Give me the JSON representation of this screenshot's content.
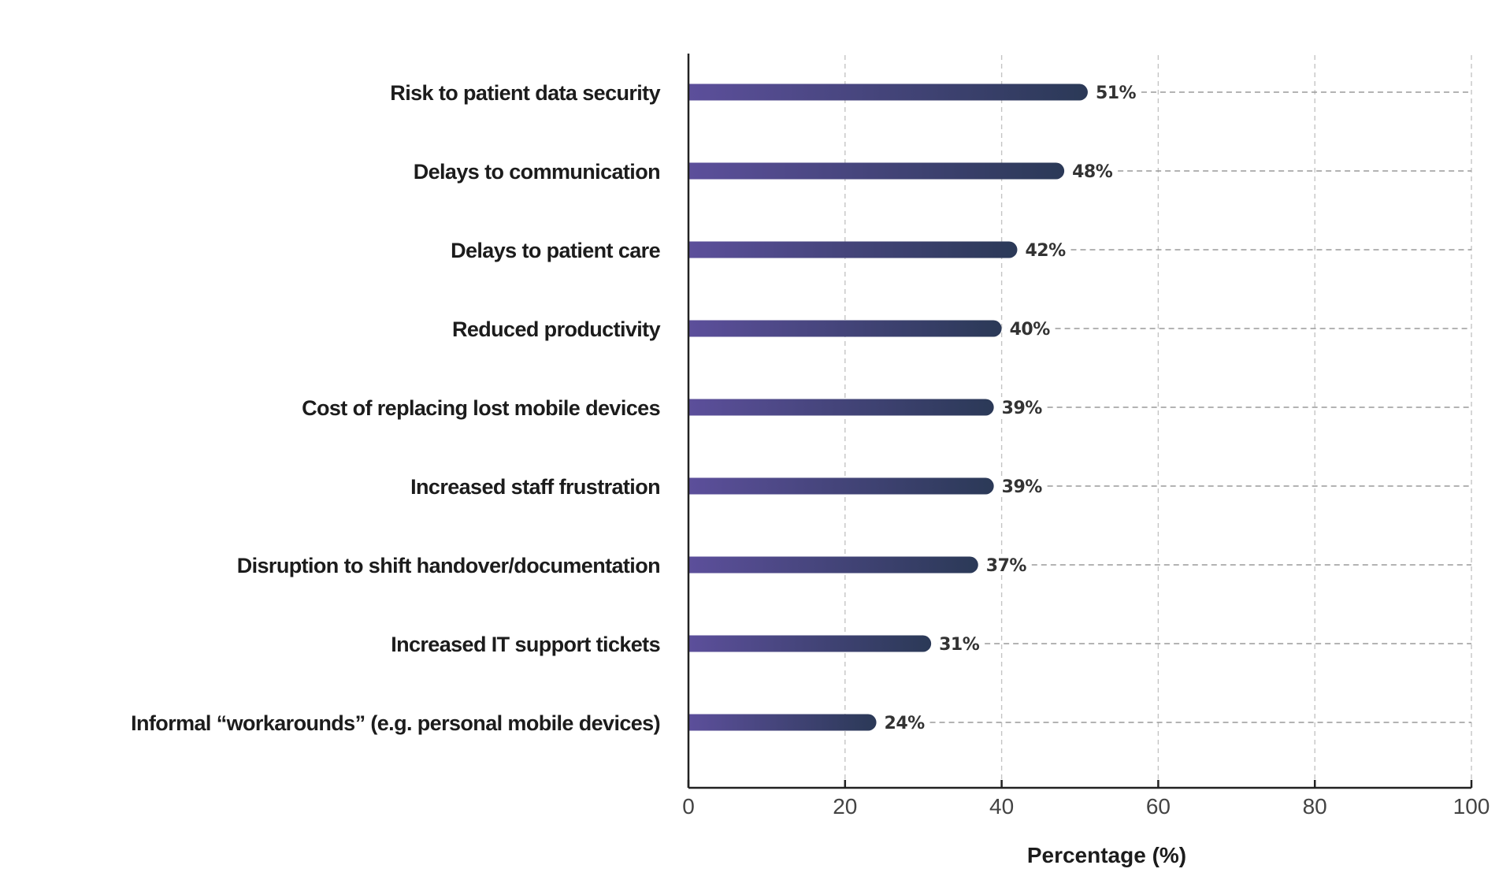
{
  "chart_data": {
    "type": "bar",
    "orientation": "horizontal",
    "title": "",
    "xlabel": "Percentage (%)",
    "ylabel": "",
    "xlim": [
      0,
      100
    ],
    "xticks": [
      0,
      20,
      40,
      60,
      80,
      100
    ],
    "grid": true,
    "legend": null,
    "value_suffix": "%",
    "categories": [
      "Risk to patient data security",
      "Delays to communication",
      "Delays to patient care",
      "Reduced productivity",
      "Cost of replacing lost mobile devices",
      "Increased staff frustration",
      "Disruption to shift handover/documentation",
      "Increased IT support tickets",
      "Informal “workarounds” (e.g. personal mobile devices)"
    ],
    "values": [
      51,
      48,
      42,
      40,
      39,
      39,
      37,
      31,
      24
    ],
    "data_labels": [
      "51%",
      "48%",
      "42%",
      "40%",
      "39%",
      "39%",
      "37%",
      "31%",
      "24%"
    ],
    "colors": {
      "bar_gradient_start": "#5c4f9b",
      "bar_gradient_end": "#2b3957",
      "text": "#1c1c1c",
      "value_text": "#333333",
      "grid": "#c4c4c4",
      "axis": "#222222"
    }
  }
}
